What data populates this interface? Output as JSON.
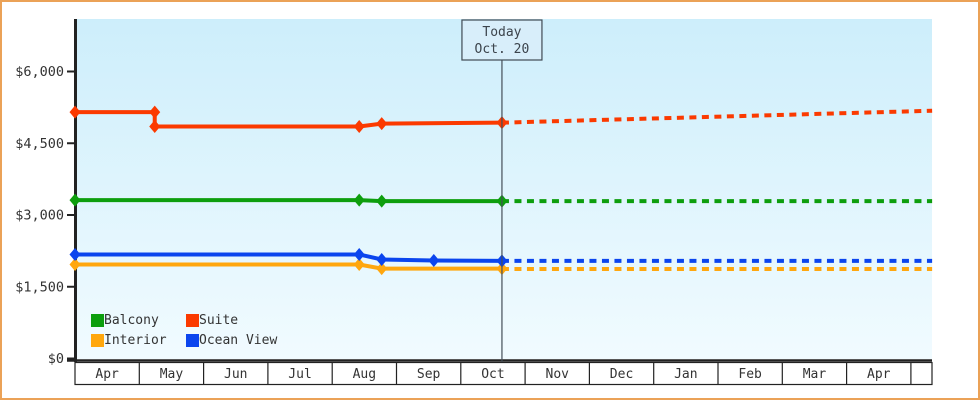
{
  "chart_data": {
    "type": "line",
    "title": "",
    "description": "Cabin price history by category with dashed forecast after today marker",
    "today": {
      "line1": "Today",
      "line2": "Oct. 20",
      "pos": 6.64
    },
    "x_axis": {
      "months": [
        "Apr",
        "May",
        "Jun",
        "Jul",
        "Aug",
        "Sep",
        "Oct",
        "Nov",
        "Dec",
        "Jan",
        "Feb",
        "Mar",
        "Apr"
      ]
    },
    "y_axis": {
      "ticks": [
        {
          "value": 0,
          "label": "$0"
        },
        {
          "value": 1500,
          "label": "$1,500"
        },
        {
          "value": 3000,
          "label": "$3,000"
        },
        {
          "value": 4500,
          "label": "$4,500"
        },
        {
          "value": 6000,
          "label": "$6,000"
        }
      ],
      "ylim": [
        0,
        7100
      ]
    },
    "xlim_months": [
      0,
      13.33
    ],
    "grid": false,
    "legend_position": "bottom-left",
    "series": [
      {
        "name": "Balcony",
        "color": "#0d9e0d",
        "solid": [
          [
            0,
            3310
          ],
          [
            4.42,
            3310
          ],
          [
            4.77,
            3290
          ],
          [
            6.64,
            3290
          ]
        ],
        "dashed": [
          [
            6.64,
            3290
          ],
          [
            13.33,
            3290
          ]
        ]
      },
      {
        "name": "Suite",
        "color": "#fb3a00",
        "solid": [
          [
            0,
            5150
          ],
          [
            1.24,
            5150
          ],
          [
            1.24,
            4850
          ],
          [
            4.42,
            4850
          ],
          [
            4.77,
            4910
          ],
          [
            6.64,
            4930
          ]
        ],
        "dashed": [
          [
            6.64,
            4930
          ],
          [
            13.33,
            5180
          ]
        ]
      },
      {
        "name": "Interior",
        "color": "#ffa70e",
        "solid": [
          [
            0,
            1965
          ],
          [
            4.42,
            1965
          ],
          [
            4.77,
            1880
          ],
          [
            6.64,
            1880
          ]
        ],
        "dashed": [
          [
            6.64,
            1870
          ],
          [
            13.33,
            1870
          ]
        ]
      },
      {
        "name": "Ocean View",
        "color": "#0b45ee",
        "solid": [
          [
            0,
            2175
          ],
          [
            4.42,
            2175
          ],
          [
            4.77,
            2070
          ],
          [
            5.58,
            2050
          ],
          [
            6.64,
            2040
          ]
        ],
        "dashed": [
          [
            6.64,
            2040
          ],
          [
            13.33,
            2040
          ]
        ]
      }
    ],
    "colors": {
      "plot_bg_top": "#cdeefb",
      "plot_bg_bottom": "#f1fbff",
      "axis": "#222222",
      "tick_text": "#333333",
      "today_line": "#454f58",
      "today_box_bg": "#d8eefa",
      "today_box_border": "#404a54",
      "frame_border": "#eba257",
      "month_cell_bg": "#ffffff"
    }
  }
}
